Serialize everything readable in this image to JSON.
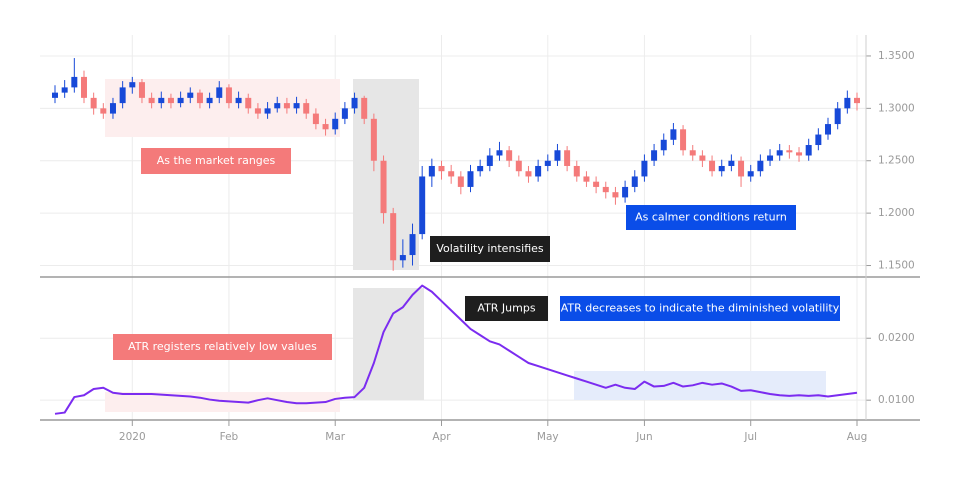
{
  "chart_data": [
    {
      "type": "candlestick",
      "open": [
        1.31,
        1.315,
        1.32,
        1.33,
        1.31,
        1.3,
        1.295,
        1.305,
        1.32,
        1.325,
        1.31,
        1.305,
        1.31,
        1.305,
        1.31,
        1.315,
        1.305,
        1.31,
        1.32,
        1.305,
        1.31,
        1.3,
        1.295,
        1.3,
        1.305,
        1.3,
        1.305,
        1.295,
        1.285,
        1.28,
        1.29,
        1.3,
        1.31,
        1.29,
        1.25,
        1.2,
        1.155,
        1.16,
        1.18,
        1.235,
        1.245,
        1.24,
        1.235,
        1.225,
        1.24,
        1.245,
        1.255,
        1.26,
        1.25,
        1.24,
        1.235,
        1.245,
        1.25,
        1.26,
        1.245,
        1.235,
        1.23,
        1.225,
        1.22,
        1.215,
        1.225,
        1.235,
        1.25,
        1.26,
        1.27,
        1.28,
        1.26,
        1.255,
        1.25,
        1.24,
        1.245,
        1.25,
        1.235,
        1.24,
        1.25,
        1.255,
        1.26,
        1.258,
        1.255,
        1.265,
        1.275,
        1.285,
        1.3,
        1.31
      ],
      "high": [
        1.322,
        1.327,
        1.348,
        1.336,
        1.315,
        1.305,
        1.31,
        1.326,
        1.33,
        1.328,
        1.315,
        1.316,
        1.314,
        1.316,
        1.32,
        1.318,
        1.315,
        1.326,
        1.323,
        1.316,
        1.314,
        1.305,
        1.306,
        1.311,
        1.31,
        1.311,
        1.309,
        1.3,
        1.29,
        1.296,
        1.306,
        1.315,
        1.312,
        1.295,
        1.255,
        1.205,
        1.175,
        1.19,
        1.245,
        1.252,
        1.25,
        1.246,
        1.24,
        1.246,
        1.251,
        1.262,
        1.268,
        1.264,
        1.255,
        1.245,
        1.251,
        1.256,
        1.266,
        1.264,
        1.25,
        1.24,
        1.235,
        1.23,
        1.225,
        1.231,
        1.241,
        1.256,
        1.266,
        1.276,
        1.286,
        1.284,
        1.265,
        1.26,
        1.255,
        1.251,
        1.256,
        1.254,
        1.246,
        1.256,
        1.261,
        1.266,
        1.265,
        1.263,
        1.271,
        1.281,
        1.291,
        1.306,
        1.317,
        1.315
      ],
      "low": [
        1.305,
        1.31,
        1.315,
        1.305,
        1.294,
        1.29,
        1.29,
        1.3,
        1.314,
        1.305,
        1.3,
        1.3,
        1.3,
        1.301,
        1.305,
        1.3,
        1.3,
        1.305,
        1.3,
        1.3,
        1.295,
        1.29,
        1.29,
        1.296,
        1.295,
        1.295,
        1.29,
        1.28,
        1.274,
        1.275,
        1.285,
        1.295,
        1.285,
        1.24,
        1.19,
        1.145,
        1.148,
        1.15,
        1.175,
        1.225,
        1.232,
        1.228,
        1.218,
        1.22,
        1.235,
        1.24,
        1.25,
        1.244,
        1.235,
        1.229,
        1.23,
        1.24,
        1.245,
        1.24,
        1.23,
        1.225,
        1.219,
        1.214,
        1.208,
        1.21,
        1.22,
        1.23,
        1.245,
        1.255,
        1.265,
        1.255,
        1.25,
        1.244,
        1.235,
        1.235,
        1.24,
        1.225,
        1.23,
        1.235,
        1.245,
        1.25,
        1.252,
        1.249,
        1.25,
        1.26,
        1.27,
        1.28,
        1.295,
        1.298
      ],
      "close": [
        1.315,
        1.32,
        1.33,
        1.31,
        1.3,
        1.295,
        1.305,
        1.32,
        1.325,
        1.31,
        1.305,
        1.31,
        1.305,
        1.31,
        1.315,
        1.305,
        1.31,
        1.32,
        1.305,
        1.31,
        1.3,
        1.295,
        1.3,
        1.305,
        1.3,
        1.305,
        1.295,
        1.285,
        1.28,
        1.29,
        1.3,
        1.31,
        1.29,
        1.25,
        1.2,
        1.155,
        1.16,
        1.18,
        1.235,
        1.245,
        1.24,
        1.235,
        1.225,
        1.24,
        1.245,
        1.255,
        1.26,
        1.25,
        1.24,
        1.235,
        1.245,
        1.25,
        1.26,
        1.245,
        1.235,
        1.23,
        1.225,
        1.22,
        1.215,
        1.225,
        1.235,
        1.25,
        1.26,
        1.27,
        1.28,
        1.26,
        1.255,
        1.25,
        1.24,
        1.245,
        1.25,
        1.235,
        1.24,
        1.25,
        1.255,
        1.26,
        1.258,
        1.255,
        1.265,
        1.275,
        1.285,
        1.3,
        1.31,
        1.305
      ],
      "up_color": "#1749d8",
      "down_color": "#f47a7a",
      "ylim": [
        1.14,
        1.37
      ],
      "yticks": [
        {
          "value": 1.15,
          "label": "1.1500"
        },
        {
          "value": 1.2,
          "label": "1.2000"
        },
        {
          "value": 1.25,
          "label": "1.2500"
        },
        {
          "value": 1.3,
          "label": "1.3000"
        },
        {
          "value": 1.35,
          "label": "1.3500"
        }
      ],
      "grid": true,
      "annotations": [
        "As the market ranges",
        "Volatility intensifies",
        "As calmer conditions return"
      ]
    },
    {
      "type": "line",
      "categories": [
        null,
        null,
        null,
        null,
        null,
        null,
        null,
        null,
        "2020",
        null,
        null,
        null,
        null,
        null,
        null,
        null,
        null,
        null,
        "Feb",
        null,
        null,
        null,
        null,
        null,
        null,
        null,
        null,
        null,
        null,
        "Mar",
        null,
        null,
        null,
        null,
        null,
        null,
        null,
        null,
        null,
        null,
        "Apr",
        null,
        null,
        null,
        null,
        null,
        null,
        null,
        null,
        null,
        null,
        "May",
        null,
        null,
        null,
        null,
        null,
        null,
        null,
        null,
        null,
        "Jun",
        null,
        null,
        null,
        null,
        null,
        null,
        null,
        null,
        null,
        null,
        "Jul",
        null,
        null,
        null,
        null,
        null,
        null,
        null,
        null,
        null,
        null,
        "Aug"
      ],
      "values": [
        0.0078,
        0.008,
        0.0105,
        0.0108,
        0.0118,
        0.012,
        0.0112,
        0.011,
        0.011,
        0.011,
        0.011,
        0.0109,
        0.0108,
        0.0107,
        0.0106,
        0.0104,
        0.0101,
        0.0099,
        0.0098,
        0.0097,
        0.0096,
        0.01,
        0.0103,
        0.01,
        0.0097,
        0.0095,
        0.0095,
        0.0096,
        0.0097,
        0.0102,
        0.0104,
        0.0105,
        0.012,
        0.016,
        0.021,
        0.024,
        0.025,
        0.027,
        0.0285,
        0.0275,
        0.026,
        0.0245,
        0.023,
        0.0215,
        0.0205,
        0.0195,
        0.019,
        0.018,
        0.017,
        0.016,
        0.0155,
        0.015,
        0.0145,
        0.014,
        0.0135,
        0.013,
        0.0125,
        0.012,
        0.0125,
        0.012,
        0.0118,
        0.013,
        0.0122,
        0.0123,
        0.0128,
        0.0122,
        0.0124,
        0.0128,
        0.0125,
        0.0127,
        0.0122,
        0.0115,
        0.0116,
        0.0113,
        0.011,
        0.0108,
        0.0107,
        0.0108,
        0.0107,
        0.0108,
        0.0106,
        0.0108,
        0.011,
        0.0112
      ],
      "color": "#7b2cf0",
      "ylim": [
        0.0068,
        0.0294
      ],
      "yticks": [
        {
          "value": 0.01,
          "label": "0.0100"
        },
        {
          "value": 0.02,
          "label": "0.0200"
        }
      ],
      "grid": true,
      "annotations": [
        "ATR registers relatively low values",
        "ATR Jumps",
        "ATR decreases to indicate the diminished volatility"
      ]
    }
  ]
}
